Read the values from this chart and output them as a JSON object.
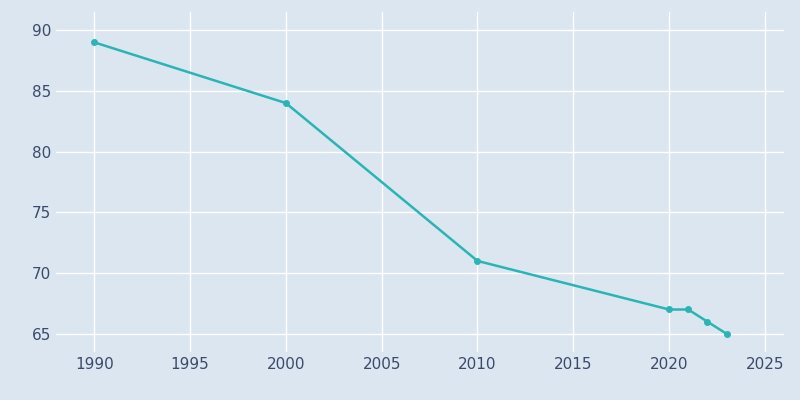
{
  "years": [
    1990,
    2000,
    2010,
    2020,
    2021,
    2022,
    2023
  ],
  "population": [
    89,
    84,
    71,
    67,
    67,
    66,
    65
  ],
  "line_color": "#2ab5b5",
  "marker_style": "o",
  "marker_size": 4,
  "line_width": 1.8,
  "background_color": "#dce6f0",
  "grid_color": "#ffffff",
  "xlim": [
    1988,
    2026
  ],
  "ylim": [
    63.5,
    91.5
  ],
  "xticks": [
    1990,
    1995,
    2000,
    2005,
    2010,
    2015,
    2020,
    2025
  ],
  "yticks": [
    65,
    70,
    75,
    80,
    85,
    90
  ],
  "tick_color": "#3b4a6b",
  "tick_labelsize": 11
}
